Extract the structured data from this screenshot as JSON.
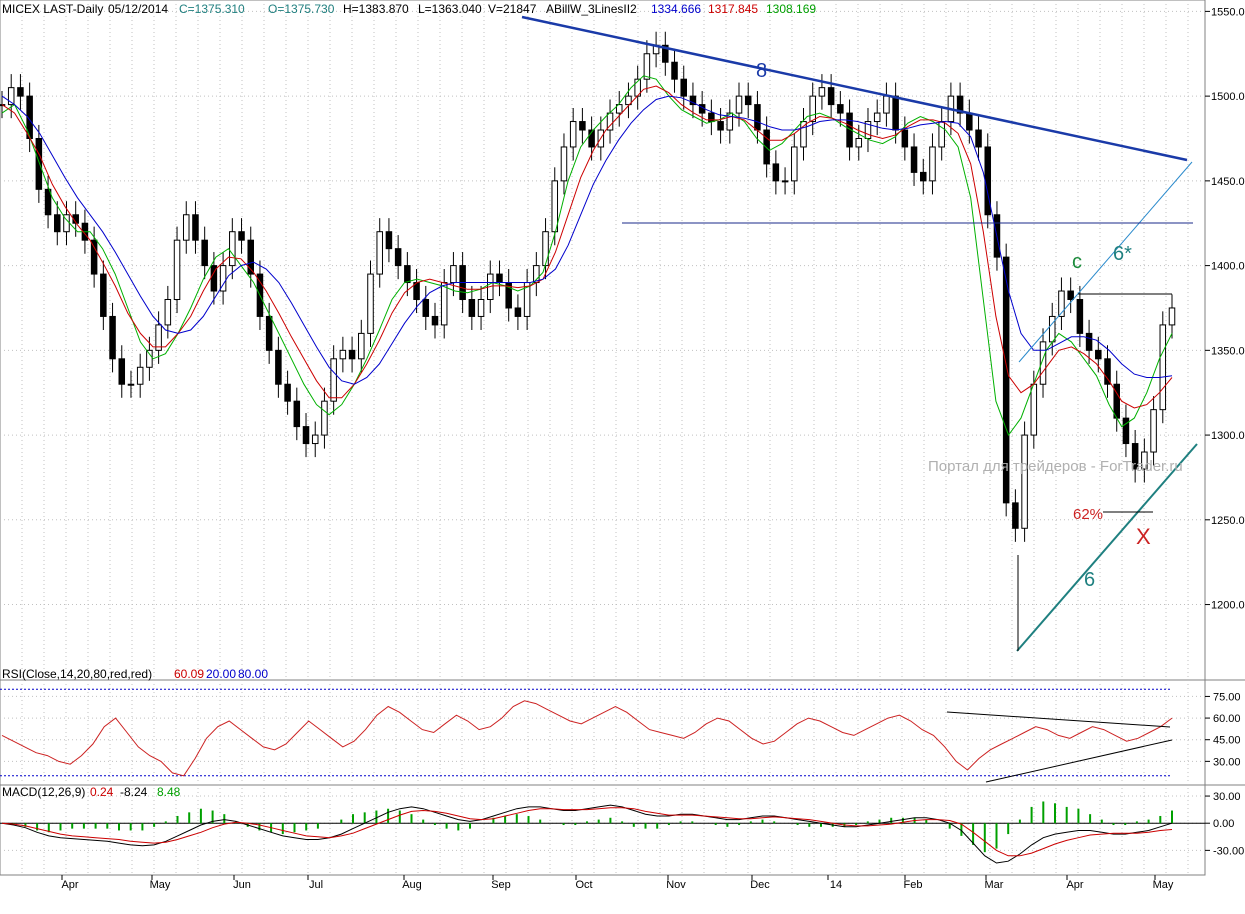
{
  "header": {
    "symbol": "MICEX LAST-Daily",
    "date": "05/12/2014",
    "close": "C=1375.310",
    "open": "O=1375.730",
    "high": "H=1383.870",
    "low": "L=1363.040",
    "volume": "V=21847",
    "indicator_name": "ABillW_3LinesII2",
    "indicator_values": [
      "1334.666",
      "1317.845",
      "1308.169"
    ]
  },
  "rsi_header": {
    "label": "RSI(Close,14,20,80,red,red)",
    "value": "60.09",
    "low_level": "20.00",
    "high_level": "80.00"
  },
  "macd_header": {
    "label": "MACD(12,26,9)",
    "values": [
      "0.24",
      "-8.24",
      "8.48"
    ]
  },
  "annotations": {
    "wave_8": "8",
    "wave_6": "6",
    "wave_6_star": "6*",
    "wave_c": "c",
    "fib_62": "62%",
    "point_x": "X"
  },
  "watermark": "Портал для трейдеров - ForTrader.ru",
  "colors": {
    "candle": "#000000",
    "ma_fast": "#00b000",
    "ma_mid": "#cc0000",
    "ma_slow": "#0000cc",
    "trend_line_8": "#1a3aa8",
    "trend_line_6": "#1f8080",
    "annot_red": "#cc2222",
    "annot_green": "#1a8a3a",
    "rsi_line": "#cc2222",
    "macd_hist": "#00a000",
    "grid": "#c0c0c0"
  },
  "chart_data": [
    {
      "type": "line",
      "subtype": "candlestick",
      "title": "MICEX LAST-Daily",
      "x_ticks": [
        "Apr",
        "May",
        "Jun",
        "Jul",
        "Aug",
        "Sep",
        "Oct",
        "Nov",
        "Dec",
        "14",
        "Feb",
        "Mar",
        "Apr",
        "May"
      ],
      "y_ticks": [
        "1550.00",
        "1500.00",
        "1450.00",
        "1400.00",
        "1350.00",
        "1300.00",
        "1250.00",
        "1200.00"
      ],
      "ylim": [
        1172,
        1552
      ],
      "grid": true,
      "series": [
        {
          "name": "price",
          "values": [
            1495,
            1505,
            1500,
            1475,
            1445,
            1430,
            1420,
            1430,
            1425,
            1415,
            1395,
            1370,
            1345,
            1330,
            1330,
            1340,
            1350,
            1365,
            1380,
            1415,
            1430,
            1415,
            1400,
            1385,
            1400,
            1420,
            1415,
            1395,
            1370,
            1350,
            1330,
            1320,
            1305,
            1295,
            1300,
            1320,
            1345,
            1350,
            1345,
            1360,
            1395,
            1420,
            1410,
            1400,
            1390,
            1380,
            1370,
            1365,
            1390,
            1400,
            1380,
            1370,
            1380,
            1395,
            1390,
            1375,
            1370,
            1390,
            1400,
            1420,
            1450,
            1470,
            1485,
            1480,
            1470,
            1480,
            1490,
            1495,
            1500,
            1510,
            1525,
            1530,
            1520,
            1510,
            1500,
            1495,
            1490,
            1485,
            1480,
            1490,
            1500,
            1495,
            1480,
            1460,
            1450,
            1450,
            1470,
            1485,
            1500,
            1505,
            1495,
            1490,
            1470,
            1475,
            1485,
            1490,
            1500,
            1480,
            1470,
            1455,
            1450,
            1470,
            1485,
            1500,
            1490,
            1480,
            1470,
            1430,
            1405,
            1260,
            1245,
            1300,
            1330,
            1355,
            1370,
            1385,
            1380,
            1360,
            1350,
            1345,
            1330,
            1310,
            1295,
            1280,
            1290,
            1315,
            1365,
            1375
          ]
        },
        {
          "name": "ma_fast",
          "values": [
            1490,
            1495,
            1480,
            1460,
            1440,
            1428,
            1420,
            1420,
            1410,
            1395,
            1375,
            1355,
            1345,
            1348,
            1360,
            1375,
            1392,
            1405,
            1410,
            1400,
            1390,
            1375,
            1360,
            1345,
            1330,
            1318,
            1312,
            1318,
            1330,
            1345,
            1362,
            1380,
            1390,
            1392,
            1390,
            1388,
            1385,
            1384,
            1386,
            1390,
            1388,
            1385,
            1388,
            1396,
            1420,
            1450,
            1470,
            1480,
            1488,
            1495,
            1505,
            1512,
            1510,
            1500,
            1492,
            1488,
            1484,
            1486,
            1490,
            1485,
            1475,
            1468,
            1472,
            1480,
            1488,
            1490,
            1487,
            1482,
            1478,
            1474,
            1472,
            1476,
            1484,
            1488,
            1485,
            1480,
            1470,
            1440,
            1380,
            1320,
            1300,
            1310,
            1330,
            1350,
            1360,
            1355,
            1345,
            1335,
            1318,
            1305,
            1310,
            1325,
            1345,
            1360
          ]
        },
        {
          "name": "ma_mid",
          "values": [
            1495,
            1490,
            1478,
            1465,
            1448,
            1435,
            1424,
            1415,
            1402,
            1388,
            1372,
            1360,
            1352,
            1352,
            1360,
            1370,
            1385,
            1398,
            1405,
            1404,
            1396,
            1385,
            1372,
            1358,
            1345,
            1332,
            1322,
            1322,
            1330,
            1342,
            1356,
            1372,
            1384,
            1390,
            1392,
            1390,
            1388,
            1386,
            1386,
            1388,
            1388,
            1387,
            1388,
            1392,
            1408,
            1430,
            1452,
            1468,
            1480,
            1488,
            1496,
            1504,
            1506,
            1502,
            1495,
            1490,
            1486,
            1486,
            1488,
            1486,
            1480,
            1474,
            1474,
            1478,
            1484,
            1488,
            1487,
            1484,
            1480,
            1477,
            1475,
            1477,
            1482,
            1486,
            1486,
            1484,
            1478,
            1460,
            1420,
            1370,
            1335,
            1325,
            1330,
            1340,
            1350,
            1352,
            1348,
            1342,
            1332,
            1320,
            1316,
            1318,
            1325,
            1334
          ]
        },
        {
          "name": "ma_slow",
          "values": [
            1500,
            1495,
            1488,
            1478,
            1465,
            1452,
            1440,
            1430,
            1420,
            1408,
            1395,
            1382,
            1370,
            1362,
            1360,
            1362,
            1370,
            1382,
            1394,
            1400,
            1402,
            1398,
            1390,
            1378,
            1365,
            1352,
            1340,
            1332,
            1330,
            1334,
            1342,
            1354,
            1366,
            1376,
            1384,
            1388,
            1390,
            1390,
            1390,
            1390,
            1390,
            1390,
            1390,
            1392,
            1398,
            1412,
            1430,
            1448,
            1462,
            1474,
            1484,
            1492,
            1498,
            1500,
            1499,
            1496,
            1492,
            1489,
            1488,
            1487,
            1485,
            1482,
            1480,
            1480,
            1482,
            1485,
            1486,
            1486,
            1485,
            1483,
            1481,
            1480,
            1481,
            1483,
            1484,
            1485,
            1484,
            1476,
            1455,
            1420,
            1385,
            1360,
            1350,
            1350,
            1354,
            1358,
            1358,
            1356,
            1350,
            1342,
            1336,
            1334,
            1334,
            1335
          ]
        }
      ]
    },
    {
      "type": "line",
      "title": "RSI(Close,14,20,80,red,red)",
      "y_ticks": [
        "75.00",
        "60.00",
        "45.00",
        "30.00"
      ],
      "ylim": [
        15,
        85
      ],
      "levels": [
        20,
        80
      ],
      "series": [
        {
          "name": "RSI",
          "values": [
            48,
            44,
            40,
            36,
            34,
            30,
            28,
            34,
            42,
            54,
            60,
            50,
            40,
            34,
            30,
            22,
            20,
            32,
            46,
            54,
            58,
            52,
            46,
            40,
            38,
            42,
            50,
            58,
            52,
            46,
            40,
            44,
            52,
            62,
            68,
            64,
            58,
            52,
            50,
            56,
            62,
            58,
            52,
            54,
            60,
            68,
            72,
            70,
            66,
            62,
            58,
            56,
            60,
            64,
            68,
            64,
            58,
            52,
            50,
            48,
            46,
            50,
            56,
            60,
            58,
            52,
            46,
            42,
            44,
            50,
            56,
            60,
            58,
            54,
            50,
            48,
            52,
            56,
            60,
            62,
            58,
            52,
            48,
            40,
            30,
            24,
            32,
            38,
            42,
            46,
            50,
            54,
            52,
            48,
            46,
            50,
            54,
            52,
            48,
            44,
            46,
            50,
            54,
            60
          ]
        }
      ]
    },
    {
      "type": "line",
      "title": "MACD(12,26,9)",
      "y_ticks": [
        "30.00",
        "0.00",
        "-30.00"
      ],
      "ylim": [
        -55,
        40
      ],
      "series": [
        {
          "name": "MACD",
          "values": [
            0,
            -2,
            -5,
            -10,
            -14,
            -16,
            -17,
            -18,
            -19,
            -20,
            -22,
            -24,
            -25,
            -24,
            -20,
            -14,
            -8,
            -2,
            2,
            4,
            2,
            -2,
            -6,
            -10,
            -14,
            -16,
            -18,
            -18,
            -16,
            -12,
            -6,
            0,
            6,
            12,
            16,
            18,
            16,
            12,
            8,
            4,
            2,
            4,
            8,
            12,
            16,
            18,
            18,
            16,
            14,
            14,
            16,
            18,
            20,
            18,
            14,
            10,
            8,
            8,
            10,
            10,
            8,
            6,
            4,
            4,
            6,
            8,
            8,
            6,
            4,
            2,
            0,
            -2,
            -4,
            -4,
            -2,
            0,
            2,
            4,
            6,
            6,
            4,
            0,
            -8,
            -22,
            -36,
            -44,
            -42,
            -34,
            -24,
            -16,
            -12,
            -10,
            -8,
            -8,
            -10,
            -12,
            -12,
            -10,
            -8,
            -4,
            0
          ]
        },
        {
          "name": "Signal",
          "values": [
            0,
            -1,
            -3,
            -6,
            -9,
            -12,
            -14,
            -15,
            -16,
            -17,
            -18,
            -20,
            -21,
            -22,
            -21,
            -18,
            -14,
            -10,
            -5,
            -1,
            1,
            0,
            -2,
            -5,
            -8,
            -11,
            -14,
            -15,
            -16,
            -14,
            -11,
            -6,
            -1,
            4,
            9,
            13,
            14,
            13,
            11,
            8,
            5,
            4,
            5,
            8,
            11,
            14,
            16,
            16,
            15,
            15,
            15,
            16,
            17,
            17,
            16,
            13,
            11,
            9,
            9,
            9,
            8,
            7,
            6,
            5,
            5,
            6,
            7,
            6,
            5,
            4,
            2,
            0,
            -2,
            -3,
            -3,
            -2,
            -1,
            1,
            3,
            4,
            4,
            3,
            -1,
            -10,
            -20,
            -30,
            -36,
            -36,
            -33,
            -28,
            -23,
            -19,
            -16,
            -13,
            -12,
            -11,
            -11,
            -11,
            -10,
            -8,
            -7
          ]
        }
      ]
    }
  ]
}
